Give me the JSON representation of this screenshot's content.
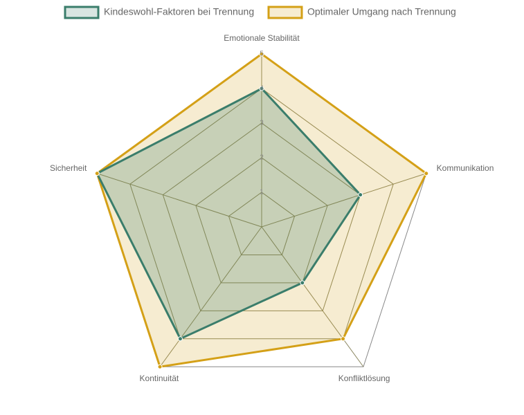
{
  "chart_data": {
    "type": "radar",
    "categories": [
      "Emotionale Stabilität",
      "Kommunikation",
      "Konfliktlösung",
      "Kontinuität",
      "Sicherheit"
    ],
    "series": [
      {
        "name": "Kindeswohl-Faktoren bei Trennung",
        "color": "#3a7d6b",
        "values": [
          4,
          3,
          2,
          4,
          5
        ]
      },
      {
        "name": "Optimaler Umgang nach Trennung",
        "color": "#d4a017",
        "values": [
          5,
          5,
          4,
          5,
          5
        ]
      }
    ],
    "rlim": [
      0,
      5
    ],
    "rticks": [
      1,
      2,
      3,
      4,
      5
    ],
    "grid": true
  }
}
